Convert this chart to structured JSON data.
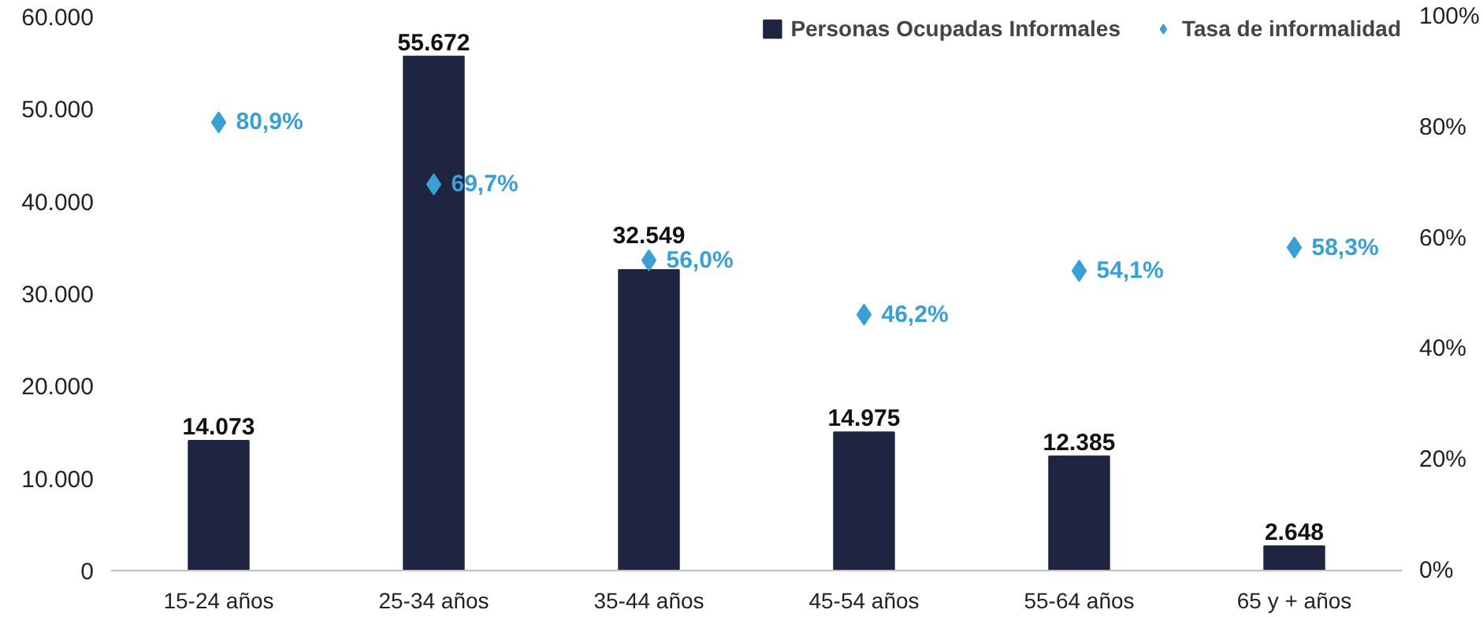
{
  "chart_data": {
    "type": "bar",
    "categories": [
      "15-24 años",
      "25-34 años",
      "35-44 años",
      "45-54 años",
      "55-64 años",
      "65 y + años"
    ],
    "series": [
      {
        "name": "Personas Ocupadas Informales",
        "color": "#1f2541",
        "values": [
          14073,
          55672,
          32549,
          14975,
          12385,
          2648
        ],
        "value_labels": [
          "14.073",
          "55.672",
          "32.549",
          "14.975",
          "12.385",
          "2.648"
        ]
      },
      {
        "name": "Tasa de informalidad",
        "type": "scatter",
        "axis": "y2",
        "marker": "diamond",
        "color": "#3a9fd4",
        "values": [
          80.9,
          69.7,
          56.0,
          46.2,
          54.1,
          58.3
        ],
        "value_labels": [
          "80,9%",
          "69,7%",
          "56,0%",
          "46,2%",
          "54,1%",
          "58,3%"
        ]
      }
    ],
    "ylim": [
      0,
      60000
    ],
    "yticks": [
      0,
      {
        "value": 10000,
        "label": "10.000"
      },
      {
        "value": 20000,
        "label": "20.000"
      },
      {
        "value": 30000,
        "label": "30.000"
      },
      {
        "value": 40000,
        "label": "40.000"
      },
      {
        "value": 50000,
        "label": "50.000"
      },
      {
        "value": 60000,
        "label": "60.000"
      }
    ],
    "y2lim": [
      0,
      100
    ],
    "y2ticks": [
      {
        "value": 0,
        "label": "0%"
      },
      {
        "value": 20,
        "label": "20%"
      },
      {
        "value": 40,
        "label": "40%"
      },
      {
        "value": 60,
        "label": "60%"
      },
      {
        "value": 80,
        "label": "80%"
      },
      {
        "value": 100,
        "label": "100%"
      }
    ],
    "grid": false,
    "legend": "top right"
  }
}
